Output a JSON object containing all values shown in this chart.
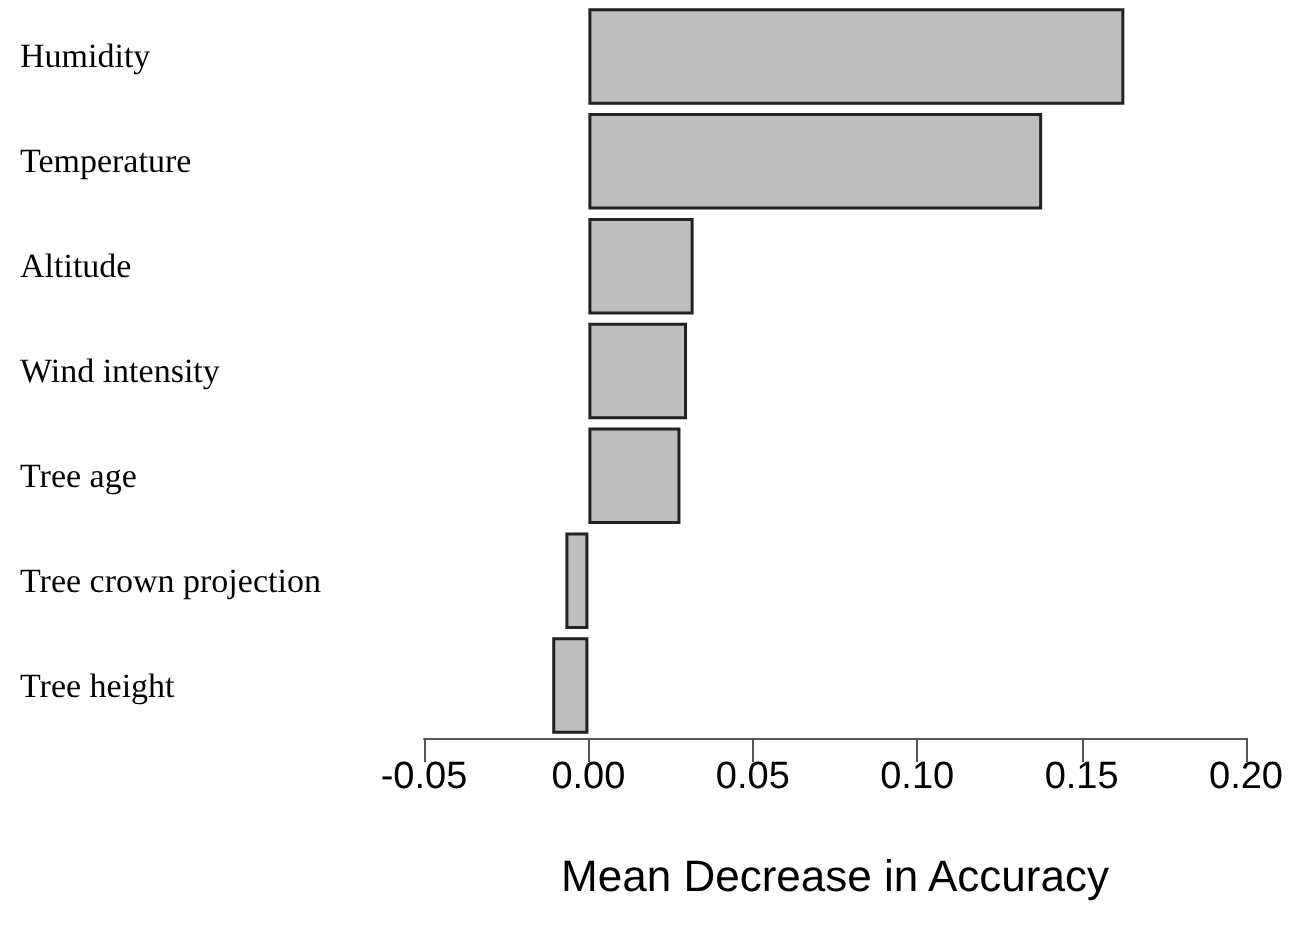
{
  "chart_data": {
    "type": "bar",
    "orientation": "horizontal",
    "xlabel": "Mean Decrease in Accuracy",
    "categories": [
      "Humidity",
      "Temperature",
      "Altitude",
      "Wind intensity",
      "Tree age",
      "Tree crown projection",
      "Tree height"
    ],
    "values": [
      0.163,
      0.138,
      0.032,
      0.03,
      0.028,
      -0.007,
      -0.011
    ],
    "color": "#bebebe",
    "xlim": [
      -0.05,
      0.2
    ],
    "xticks": [
      {
        "value": -0.05,
        "label": "-0.05"
      },
      {
        "value": 0,
        "label": "0.00"
      },
      {
        "value": 0.05,
        "label": "0.05"
      },
      {
        "value": 0.1,
        "label": "0.10"
      },
      {
        "value": 0.15,
        "label": "0.15"
      },
      {
        "value": 0.2,
        "label": "0.20"
      }
    ],
    "grid": false
  }
}
